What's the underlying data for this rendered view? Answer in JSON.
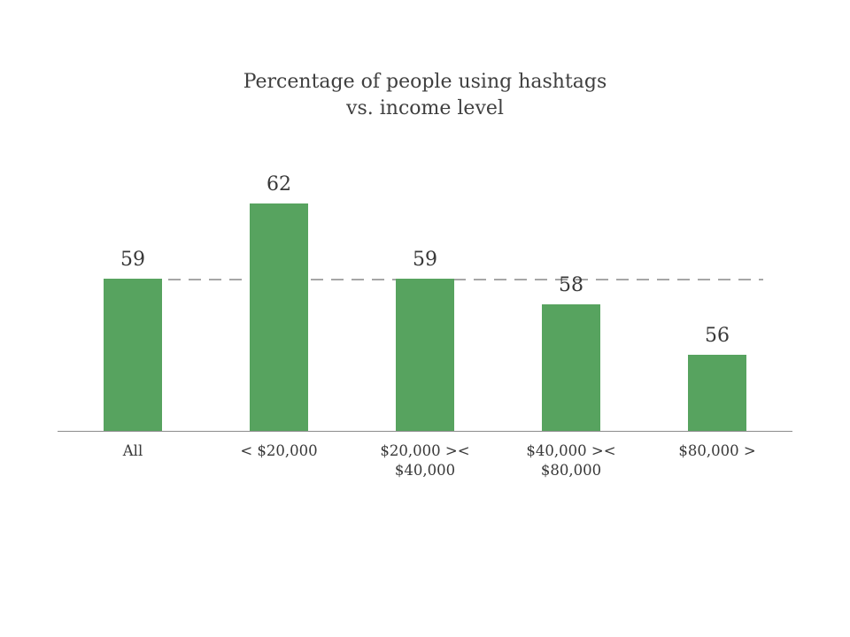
{
  "chart_data": {
    "type": "bar",
    "title": "Percentage of people using hashtags\nvs. income level",
    "categories": [
      "All",
      "< $20,000",
      "$20,000 ><\n$40,000",
      "$40,000 ><\n$80,000",
      "$80,000 >"
    ],
    "values": [
      59,
      62,
      59,
      58,
      56
    ],
    "data_labels": [
      "59",
      "62",
      "59",
      "58",
      "56"
    ],
    "xlabel": "",
    "ylabel": "",
    "ylim": [
      53,
      64
    ],
    "grid": false,
    "legend": false,
    "bar_color": "#57a35f",
    "reference_line": {
      "value": 59,
      "style": "dashed",
      "color": "#a6a6a6"
    },
    "axis_line_color": "#8c8c8c",
    "text_color": "#3f3f3f"
  }
}
